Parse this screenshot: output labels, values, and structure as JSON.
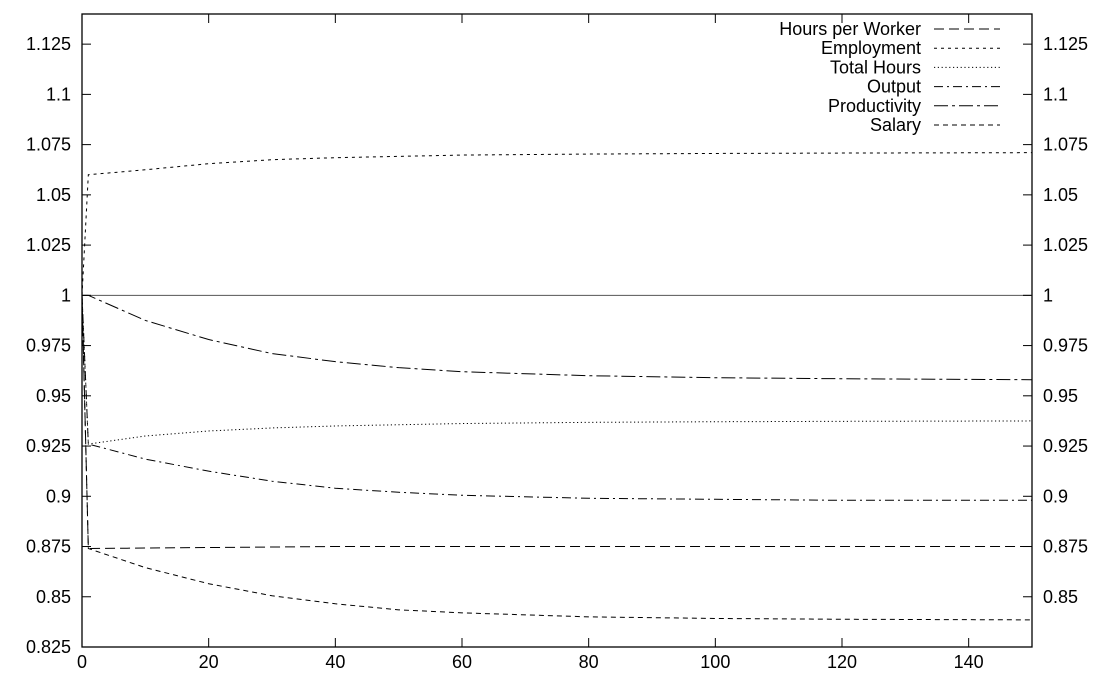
{
  "chart_data": {
    "type": "line",
    "title": "",
    "xlabel": "",
    "ylabel": "",
    "xlim": [
      0,
      150
    ],
    "ylim": [
      0.825,
      1.14
    ],
    "x_ticks": [
      0,
      20,
      40,
      60,
      80,
      100,
      120,
      140
    ],
    "y_ticks_left": [
      0.825,
      0.85,
      0.875,
      0.9,
      0.925,
      0.95,
      0.975,
      1,
      1.025,
      1.05,
      1.075,
      1.1,
      1.125
    ],
    "y_ticks_right": [
      0.85,
      0.875,
      0.9,
      0.925,
      0.95,
      0.975,
      1,
      1.025,
      1.05,
      1.075,
      1.1,
      1.125
    ],
    "grid": false,
    "legend_position": "top-right",
    "reference_line": 1,
    "series": [
      {
        "name": "Hours per Worker",
        "style": "long-dash",
        "points": [
          [
            0,
            1.0
          ],
          [
            1,
            0.874
          ],
          [
            20,
            0.8745
          ],
          [
            40,
            0.875
          ],
          [
            60,
            0.875
          ],
          [
            80,
            0.875
          ],
          [
            100,
            0.875
          ],
          [
            120,
            0.875
          ],
          [
            150,
            0.875
          ]
        ]
      },
      {
        "name": "Employment",
        "style": "short-dash",
        "points": [
          [
            0,
            1.0
          ],
          [
            1,
            1.06
          ],
          [
            10,
            1.0625
          ],
          [
            20,
            1.0655
          ],
          [
            30,
            1.0675
          ],
          [
            40,
            1.0685
          ],
          [
            60,
            1.0698
          ],
          [
            80,
            1.0703
          ],
          [
            100,
            1.0706
          ],
          [
            120,
            1.0708
          ],
          [
            150,
            1.071
          ]
        ]
      },
      {
        "name": "Total Hours",
        "style": "dotted",
        "points": [
          [
            0,
            1.0
          ],
          [
            1,
            0.926
          ],
          [
            10,
            0.93
          ],
          [
            20,
            0.9325
          ],
          [
            30,
            0.934
          ],
          [
            40,
            0.935
          ],
          [
            60,
            0.9362
          ],
          [
            80,
            0.9368
          ],
          [
            100,
            0.9371
          ],
          [
            120,
            0.9373
          ],
          [
            150,
            0.9375
          ]
        ]
      },
      {
        "name": "Output",
        "style": "dash-dot",
        "points": [
          [
            0,
            1.0
          ],
          [
            1,
            0.926
          ],
          [
            10,
            0.9185
          ],
          [
            20,
            0.9125
          ],
          [
            30,
            0.9075
          ],
          [
            40,
            0.904
          ],
          [
            50,
            0.902
          ],
          [
            60,
            0.9005
          ],
          [
            80,
            0.899
          ],
          [
            100,
            0.8985
          ],
          [
            120,
            0.898
          ],
          [
            150,
            0.898
          ]
        ]
      },
      {
        "name": "Productivity",
        "style": "long-dash-dot",
        "points": [
          [
            0,
            1.0
          ],
          [
            1,
            1.0
          ],
          [
            10,
            0.9875
          ],
          [
            20,
            0.978
          ],
          [
            30,
            0.971
          ],
          [
            40,
            0.967
          ],
          [
            50,
            0.964
          ],
          [
            60,
            0.962
          ],
          [
            80,
            0.96
          ],
          [
            100,
            0.959
          ],
          [
            120,
            0.9585
          ],
          [
            150,
            0.958
          ]
        ]
      },
      {
        "name": "Salary",
        "style": "medium-dash",
        "points": [
          [
            0,
            1.0
          ],
          [
            1,
            0.874
          ],
          [
            10,
            0.8645
          ],
          [
            20,
            0.8565
          ],
          [
            30,
            0.8505
          ],
          [
            40,
            0.8465
          ],
          [
            50,
            0.8435
          ],
          [
            60,
            0.842
          ],
          [
            80,
            0.84
          ],
          [
            100,
            0.8392
          ],
          [
            120,
            0.8388
          ],
          [
            150,
            0.8385
          ]
        ]
      }
    ]
  }
}
